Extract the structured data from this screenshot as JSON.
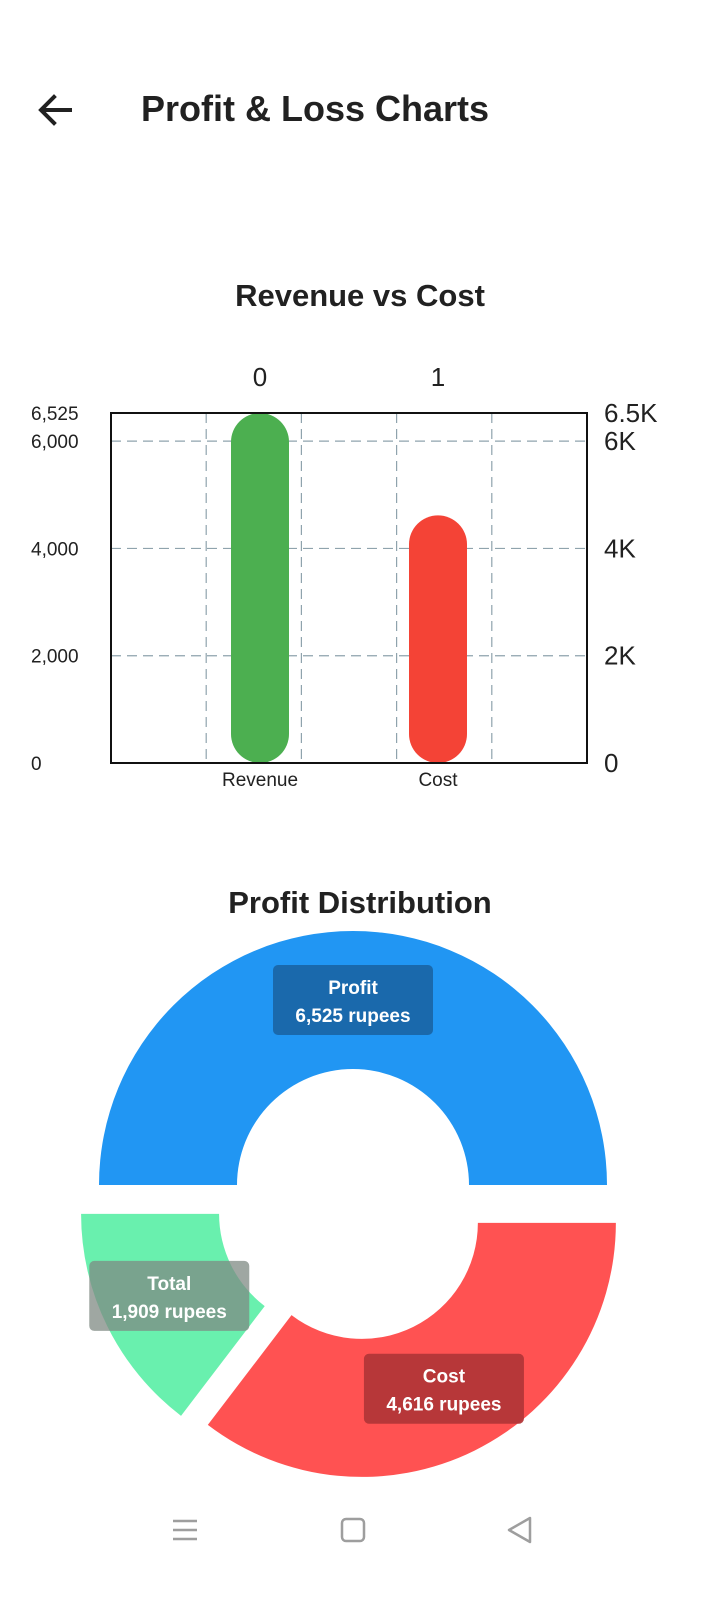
{
  "app_bar": {
    "title": "Profit & Loss Charts",
    "back_icon": "arrow-left-icon"
  },
  "colors": {
    "revenue": "#4CAF50",
    "cost_bar": "#F44336",
    "profit": "#2196F3",
    "cost_slice": "#FF5252",
    "total": "#69F0AE",
    "grid": "#8fa3ad"
  },
  "chart_data": [
    {
      "type": "bar",
      "title": "Revenue vs Cost",
      "categories": [
        "Revenue",
        "Cost"
      ],
      "top_tick_labels": [
        "0",
        "1"
      ],
      "values": [
        6525,
        4616
      ],
      "ylim": [
        0,
        6525
      ],
      "left_ticks": [
        "0",
        "2,000",
        "4,000",
        "6,000",
        "6,525"
      ],
      "right_ticks": [
        "0",
        "2K",
        "4K",
        "6K",
        "6.5K"
      ],
      "grid": true
    },
    {
      "type": "pie",
      "title": "Profit Distribution",
      "style": "donut",
      "slices": [
        {
          "name": "Profit",
          "value": 6525,
          "label": "6,525 rupees"
        },
        {
          "name": "Cost",
          "value": 4616,
          "label": "4,616 rupees"
        },
        {
          "name": "Total",
          "value": 1909,
          "label": "1,909 rupees"
        }
      ]
    }
  ],
  "nav_bar": {
    "icons": [
      "menu-icon",
      "home-square-icon",
      "back-triangle-icon"
    ]
  }
}
